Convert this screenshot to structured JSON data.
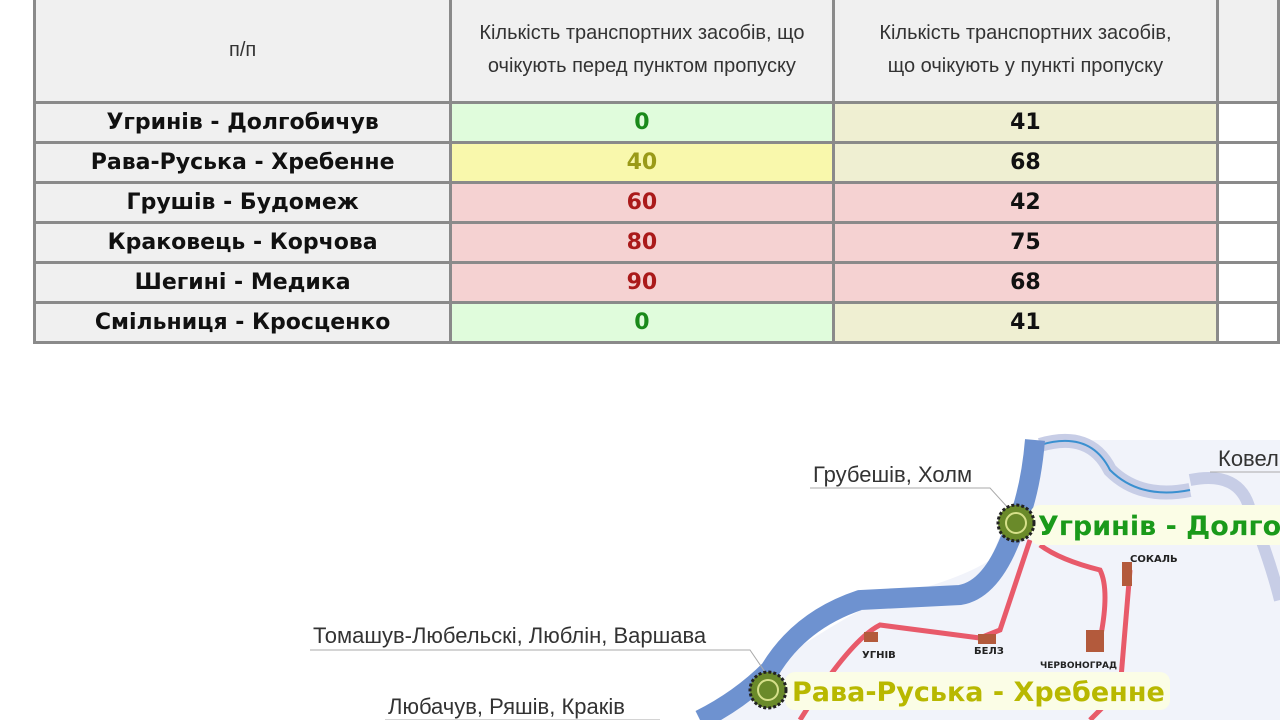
{
  "table": {
    "headers": [
      "п/п",
      "Кількість транспортних засобів, що очікують перед пунктом пропуску",
      "Кількість транспортних засобів, що очікують у пункті пропуску"
    ],
    "rows": [
      {
        "name": "Угринів - Долгобичув",
        "before": "0",
        "inside": "41",
        "status": "green"
      },
      {
        "name": "Рава-Руська - Хребенне",
        "before": "40",
        "inside": "68",
        "status": "yellow"
      },
      {
        "name": "Грушів - Будомеж",
        "before": "60",
        "inside": "42",
        "status": "red"
      },
      {
        "name": "Краковець - Корчова",
        "before": "80",
        "inside": "75",
        "status": "red"
      },
      {
        "name": "Шегині - Медика",
        "before": "90",
        "inside": "68",
        "status": "red"
      },
      {
        "name": "Смільниця - Кросценко",
        "before": "0",
        "inside": "41",
        "status": "green"
      }
    ]
  },
  "map": {
    "directions": [
      "Грубешів, Холм",
      "Томашув-Любельскі, Люблін, Варшава",
      "Любачув, Ряшів, Краків",
      "Ковел"
    ],
    "checkpoints": [
      {
        "label": "Угринів - Долго",
        "color": "#1a9a1a"
      },
      {
        "label": "Рава-Руська - Хребенне",
        "color": "#b8b800"
      }
    ],
    "towns": [
      "УГНІВ",
      "БЕЛЗ",
      "СОКАЛЬ",
      "ЧЕРВОНОГРАД"
    ]
  }
}
